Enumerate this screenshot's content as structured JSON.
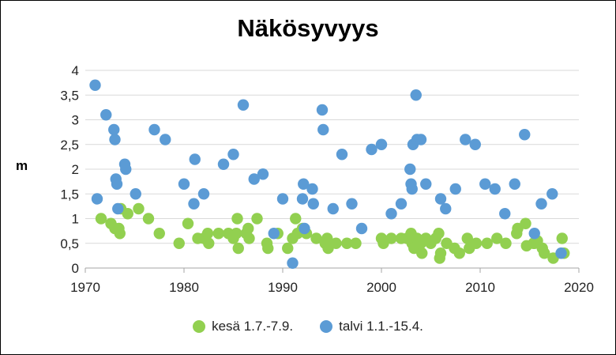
{
  "chart_data": {
    "type": "scatter",
    "title": "Näkösyvyys",
    "ylabel": "m",
    "xlabel": "",
    "xlim": [
      1970,
      2020
    ],
    "ylim": [
      0,
      4
    ],
    "x_ticks": [
      1970,
      1980,
      1990,
      2000,
      2010,
      2020
    ],
    "y_ticks": [
      "0",
      "0,5",
      "1",
      "1,5",
      "2",
      "2,5",
      "3",
      "3,5",
      "4"
    ],
    "grid": true,
    "legend_position": "bottom",
    "series": [
      {
        "name": "kesä 1.7.-7.9.",
        "color": "#92d050",
        "points": [
          [
            1971.6,
            1.0
          ],
          [
            1972.6,
            0.9
          ],
          [
            1973.0,
            0.8
          ],
          [
            1973.4,
            0.8
          ],
          [
            1973.5,
            0.7
          ],
          [
            1973.6,
            1.2
          ],
          [
            1974.3,
            1.1
          ],
          [
            1975.4,
            1.2
          ],
          [
            1976.4,
            1.0
          ],
          [
            1977.5,
            0.7
          ],
          [
            1979.5,
            0.5
          ],
          [
            1980.4,
            0.9
          ],
          [
            1981.4,
            0.6
          ],
          [
            1982.0,
            0.6
          ],
          [
            1982.4,
            0.7
          ],
          [
            1982.5,
            0.5
          ],
          [
            1983.5,
            0.7
          ],
          [
            1984.5,
            0.7
          ],
          [
            1985.0,
            0.6
          ],
          [
            1985.3,
            0.7
          ],
          [
            1985.4,
            1.0
          ],
          [
            1985.5,
            0.4
          ],
          [
            1986.3,
            0.7
          ],
          [
            1986.5,
            0.8
          ],
          [
            1986.6,
            0.6
          ],
          [
            1987.4,
            1.0
          ],
          [
            1988.4,
            0.5
          ],
          [
            1988.5,
            0.4
          ],
          [
            1989.5,
            0.7
          ],
          [
            1990.5,
            0.4
          ],
          [
            1991.0,
            0.6
          ],
          [
            1991.3,
            1.0
          ],
          [
            1991.5,
            0.7
          ],
          [
            1992.0,
            0.8
          ],
          [
            1992.4,
            0.7
          ],
          [
            1993.4,
            0.6
          ],
          [
            1994.3,
            0.5
          ],
          [
            1994.5,
            0.6
          ],
          [
            1994.6,
            0.4
          ],
          [
            1995.4,
            0.5
          ],
          [
            1996.5,
            0.5
          ],
          [
            1997.4,
            0.5
          ],
          [
            2000.0,
            0.6
          ],
          [
            2000.2,
            0.5
          ],
          [
            2001.0,
            0.6
          ],
          [
            2002.0,
            0.6
          ],
          [
            2002.6,
            0.6
          ],
          [
            2003.0,
            0.7
          ],
          [
            2003.1,
            0.5
          ],
          [
            2003.3,
            0.4
          ],
          [
            2003.6,
            0.6
          ],
          [
            2004.0,
            0.5
          ],
          [
            2004.1,
            0.3
          ],
          [
            2004.5,
            0.6
          ],
          [
            2005.0,
            0.5
          ],
          [
            2005.5,
            0.6
          ],
          [
            2005.8,
            0.7
          ],
          [
            2005.9,
            0.2
          ],
          [
            2006.0,
            0.3
          ],
          [
            2006.6,
            0.5
          ],
          [
            2007.4,
            0.4
          ],
          [
            2007.9,
            0.3
          ],
          [
            2008.7,
            0.6
          ],
          [
            2008.9,
            0.4
          ],
          [
            2009.6,
            0.5
          ],
          [
            2010.7,
            0.5
          ],
          [
            2011.7,
            0.6
          ],
          [
            2012.6,
            0.5
          ],
          [
            2013.7,
            0.7
          ],
          [
            2013.8,
            0.8
          ],
          [
            2014.6,
            0.9
          ],
          [
            2014.7,
            0.45
          ],
          [
            2015.4,
            0.5
          ],
          [
            2015.5,
            0.5
          ],
          [
            2015.8,
            0.55
          ],
          [
            2016.3,
            0.4
          ],
          [
            2016.5,
            0.3
          ],
          [
            2017.4,
            0.2
          ],
          [
            2018.3,
            0.6
          ],
          [
            2018.5,
            0.3
          ]
        ]
      },
      {
        "name": "talvi 1.1.-15.4.",
        "color": "#5b9bd5",
        "points": [
          [
            1971.0,
            3.7
          ],
          [
            1971.2,
            1.4
          ],
          [
            1972.1,
            3.1
          ],
          [
            1972.9,
            2.8
          ],
          [
            1973.0,
            2.6
          ],
          [
            1973.1,
            1.8
          ],
          [
            1973.2,
            1.7
          ],
          [
            1973.3,
            1.2
          ],
          [
            1974.0,
            2.1
          ],
          [
            1974.1,
            2.0
          ],
          [
            1975.1,
            1.5
          ],
          [
            1977.0,
            2.8
          ],
          [
            1978.1,
            2.6
          ],
          [
            1980.0,
            1.7
          ],
          [
            1981.0,
            1.3
          ],
          [
            1981.1,
            2.2
          ],
          [
            1982.0,
            1.5
          ],
          [
            1984.0,
            2.1
          ],
          [
            1985.0,
            2.3
          ],
          [
            1986.0,
            3.3
          ],
          [
            1987.1,
            1.8
          ],
          [
            1988.0,
            1.9
          ],
          [
            1989.1,
            0.7
          ],
          [
            1990.0,
            1.4
          ],
          [
            1991.0,
            0.1
          ],
          [
            1992.0,
            1.4
          ],
          [
            1992.1,
            1.7
          ],
          [
            1992.2,
            0.8
          ],
          [
            1993.0,
            1.6
          ],
          [
            1993.1,
            1.3
          ],
          [
            1994.0,
            3.2
          ],
          [
            1994.1,
            2.8
          ],
          [
            1995.1,
            1.2
          ],
          [
            1996.0,
            2.3
          ],
          [
            1997.0,
            1.3
          ],
          [
            1998.0,
            0.8
          ],
          [
            1999.0,
            2.4
          ],
          [
            2000.0,
            2.5
          ],
          [
            2001.0,
            1.1
          ],
          [
            2002.0,
            1.3
          ],
          [
            2002.9,
            2.0
          ],
          [
            2003.0,
            1.7
          ],
          [
            2003.1,
            1.6
          ],
          [
            2003.2,
            2.5
          ],
          [
            2003.5,
            3.5
          ],
          [
            2003.6,
            2.6
          ],
          [
            2004.0,
            2.6
          ],
          [
            2004.5,
            1.7
          ],
          [
            2006.0,
            1.4
          ],
          [
            2006.5,
            1.2
          ],
          [
            2007.5,
            1.6
          ],
          [
            2008.5,
            2.6
          ],
          [
            2009.5,
            2.5
          ],
          [
            2010.5,
            1.7
          ],
          [
            2011.5,
            1.6
          ],
          [
            2012.5,
            1.1
          ],
          [
            2013.5,
            1.7
          ],
          [
            2014.5,
            2.7
          ],
          [
            2015.5,
            0.7
          ],
          [
            2016.2,
            1.3
          ],
          [
            2017.3,
            1.5
          ],
          [
            2018.2,
            0.3
          ]
        ]
      }
    ]
  }
}
